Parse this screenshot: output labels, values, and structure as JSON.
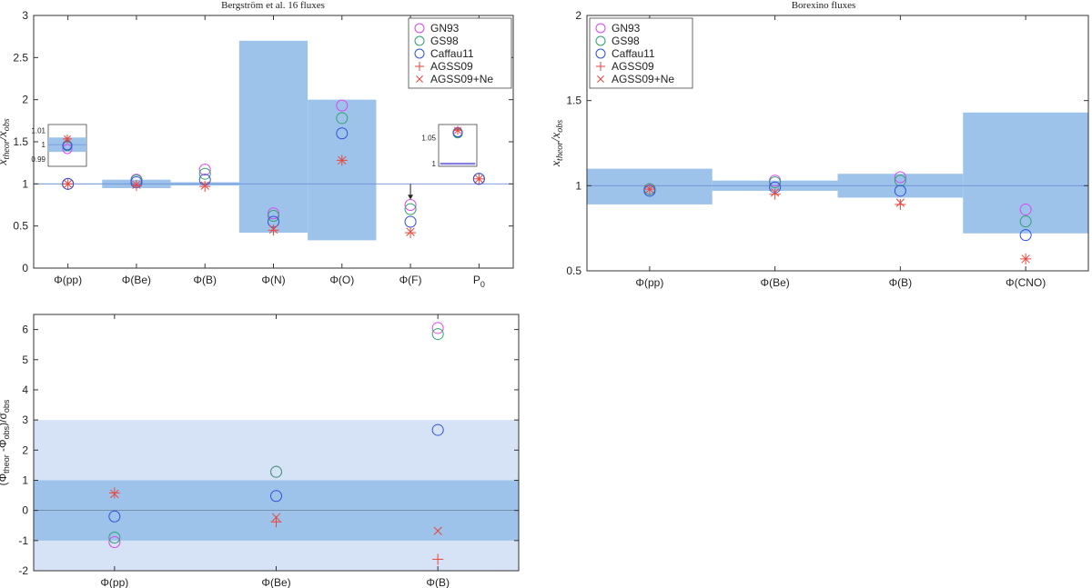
{
  "colors": {
    "band": "#9ec3ea",
    "band_light": "#d6e3f6",
    "GN93": "#d946ef",
    "GS98": "#2fa36b",
    "Caffau11": "#2d4fe0",
    "AGSS09": "#e8463c",
    "AGSS09+Ne": "#e8463c",
    "refline": "#6f8fd6"
  },
  "legend": {
    "entries": [
      {
        "name": "GN93",
        "marker": "circle"
      },
      {
        "name": "GS98",
        "marker": "circle"
      },
      {
        "name": "Caffau11",
        "marker": "circle"
      },
      {
        "name": "AGSS09",
        "marker": "plus"
      },
      {
        "name": "AGSS09+Ne",
        "marker": "cross"
      }
    ]
  },
  "chart_data": [
    {
      "id": "bergstrom",
      "type": "scatter",
      "title": "Bergström et al. 16 fluxes",
      "ylabel": "x_theor/x_obs",
      "ylim": [
        0,
        3
      ],
      "yticks": [
        "0",
        "0.5",
        "1",
        "1.5",
        "2",
        "2.5",
        "3"
      ],
      "categories": [
        "Φ(pp)",
        "Φ(Be)",
        "Φ(B)",
        "Φ(N)",
        "Φ(O)",
        "Φ(F)",
        "P"
      ],
      "category_sub": [
        "",
        "",
        "",
        "",
        "",
        "",
        "0"
      ],
      "reference": 1,
      "bands": [
        {
          "category": "Φ(pp)",
          "low": 0.995,
          "high": 1.005
        },
        {
          "category": "Φ(Be)",
          "low": 0.95,
          "high": 1.05
        },
        {
          "category": "Φ(B)",
          "low": 0.98,
          "high": 1.02
        },
        {
          "category": "Φ(N)",
          "low": 0.42,
          "high": 2.7
        },
        {
          "category": "Φ(O)",
          "low": 0.33,
          "high": 2.0
        }
      ],
      "series": [
        {
          "name": "GN93",
          "values": [
            1.0,
            1.05,
            1.17,
            0.65,
            1.93,
            0.75,
            1.06
          ]
        },
        {
          "name": "GS98",
          "values": [
            1.0,
            1.04,
            1.12,
            0.62,
            1.78,
            0.7,
            1.06
          ]
        },
        {
          "name": "Caffau11",
          "values": [
            1.0,
            1.02,
            1.05,
            0.55,
            1.6,
            0.55,
            1.06
          ]
        },
        {
          "name": "AGSS09",
          "values": [
            1.0,
            0.98,
            0.97,
            0.45,
            1.28,
            0.42,
            1.06
          ]
        },
        {
          "name": "AGSS09+Ne",
          "values": [
            1.0,
            0.99,
            0.98,
            0.46,
            1.28,
            0.43,
            1.06
          ]
        }
      ],
      "annotation": {
        "category": "Φ(F)",
        "label": "upper limit arrow"
      },
      "insets": [
        {
          "category": "Φ(pp)",
          "ylim": [
            0.985,
            1.014
          ],
          "yticks": [
            "0.99",
            "1",
            "1.01"
          ],
          "band": [
            0.995,
            1.005
          ],
          "values": {
            "GN93": 0.997,
            "GS98": 0.999,
            "Caffau11": 0.9995,
            "AGSS09": 1.004,
            "AGSS09+Ne": 1.004
          }
        },
        {
          "category": "P0",
          "ylim": [
            0.995,
            1.075
          ],
          "yticks": [
            "1",
            "1.05"
          ],
          "band": [
            0.998,
            1.002
          ],
          "values": {
            "GN93": 1.06,
            "GS98": 1.058,
            "Caffau11": 1.06,
            "AGSS09": 1.064,
            "AGSS09+Ne": 1.064
          }
        }
      ]
    },
    {
      "id": "borexino",
      "type": "scatter",
      "title": "Borexino fluxes",
      "ylabel": "x_theor/x_obs",
      "ylim": [
        0.5,
        2
      ],
      "yticks": [
        "0.5",
        "1",
        "1.5",
        "2"
      ],
      "categories": [
        "Φ(pp)",
        "Φ(Be)",
        "Φ(B)",
        "Φ(CNO)"
      ],
      "reference": 1,
      "bands": [
        {
          "category": "Φ(pp)",
          "low": 0.89,
          "high": 1.1
        },
        {
          "category": "Φ(Be)",
          "low": 0.97,
          "high": 1.03
        },
        {
          "category": "Φ(B)",
          "low": 0.93,
          "high": 1.07
        },
        {
          "category": "Φ(CNO)",
          "low": 0.72,
          "high": 1.43
        }
      ],
      "series": [
        {
          "name": "GN93",
          "values": [
            0.98,
            1.03,
            1.05,
            0.86
          ]
        },
        {
          "name": "GS98",
          "values": [
            0.98,
            1.02,
            1.03,
            0.79
          ]
        },
        {
          "name": "Caffau11",
          "values": [
            0.97,
            0.99,
            0.97,
            0.71
          ]
        },
        {
          "name": "AGSS09",
          "values": [
            0.98,
            0.95,
            0.89,
            0.57
          ]
        },
        {
          "name": "AGSS09+Ne",
          "values": [
            0.98,
            0.96,
            0.9,
            0.57
          ]
        }
      ]
    },
    {
      "id": "pull",
      "type": "scatter",
      "title": "",
      "ylabel": "(Φtheor - Φobs)/σobs",
      "ylim": [
        -2,
        6.5
      ],
      "yticks": [
        "-2",
        "-1",
        "0",
        "1",
        "2",
        "3",
        "4",
        "5",
        "6"
      ],
      "categories": [
        "Φ(pp)",
        "Φ(Be)",
        "Φ(B)"
      ],
      "bands": [
        {
          "name": "3-sigma",
          "low": -3,
          "high": 3
        },
        {
          "name": "1-sigma",
          "low": -1,
          "high": 1
        }
      ],
      "series": [
        {
          "name": "GN93",
          "values": [
            -1.05,
            1.28,
            6.05
          ]
        },
        {
          "name": "GS98",
          "values": [
            -0.9,
            1.28,
            5.85
          ]
        },
        {
          "name": "Caffau11",
          "values": [
            -0.2,
            0.48,
            2.67
          ]
        },
        {
          "name": "AGSS09",
          "values": [
            0.58,
            -0.38,
            -1.62
          ]
        },
        {
          "name": "AGSS09+Ne",
          "values": [
            0.55,
            -0.23,
            -0.68
          ]
        }
      ]
    }
  ]
}
